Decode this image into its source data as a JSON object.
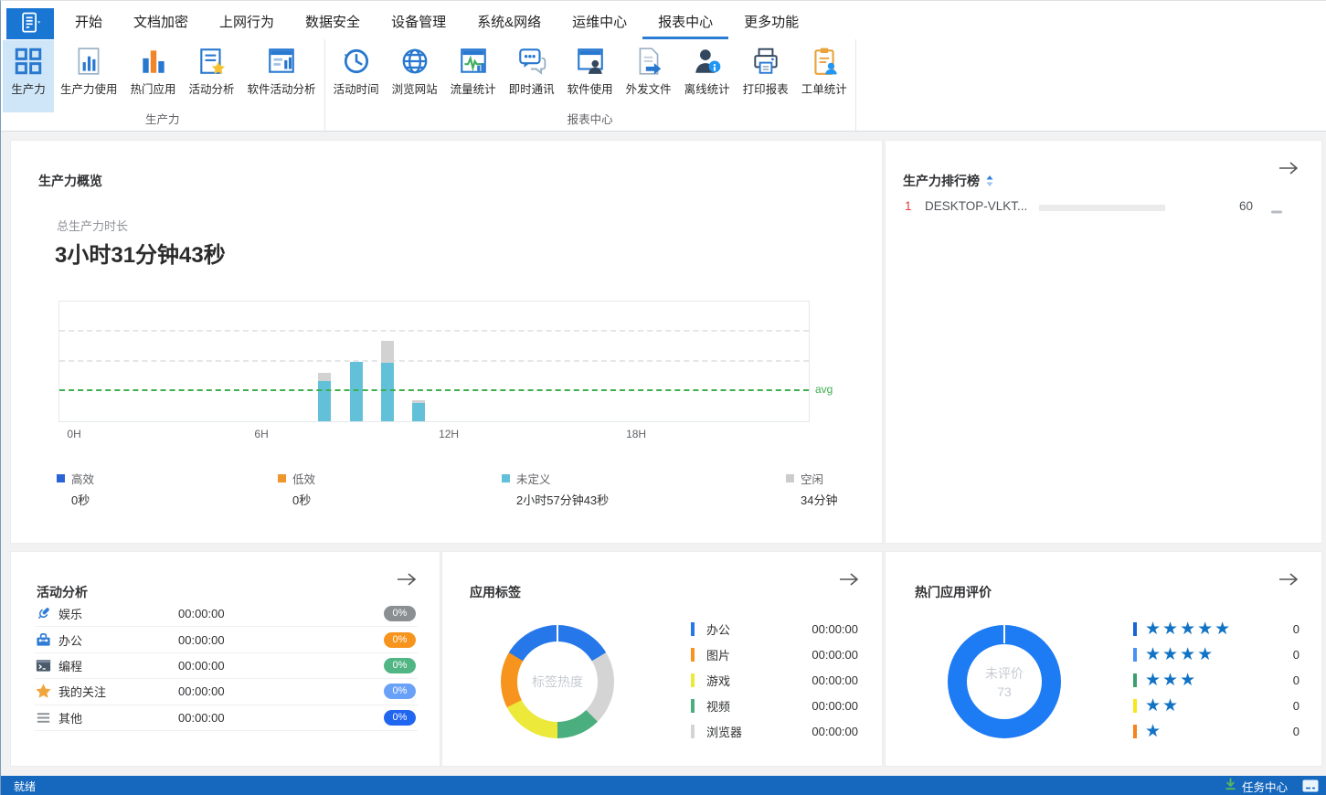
{
  "tabs": {
    "active": "报表中心",
    "items": [
      {
        "label": "开始"
      },
      {
        "label": "文档加密"
      },
      {
        "label": "上网行为"
      },
      {
        "label": "数据安全"
      },
      {
        "label": "设备管理"
      },
      {
        "label": "系统&网络"
      },
      {
        "label": "运维中心"
      },
      {
        "label": "报表中心"
      },
      {
        "label": "更多功能"
      }
    ]
  },
  "ribbon": {
    "groups": [
      {
        "label": "生产力",
        "buttons": [
          {
            "label": "生产力",
            "icon": "grid",
            "selected": true
          },
          {
            "label": "生产力使用",
            "icon": "doc-bars"
          },
          {
            "label": "热门应用",
            "icon": "bars-colored"
          },
          {
            "label": "活动分析",
            "icon": "doc-star"
          },
          {
            "label": "软件活动分析",
            "icon": "window-bars"
          }
        ]
      },
      {
        "label": "报表中心",
        "buttons": [
          {
            "label": "活动时间",
            "icon": "clock"
          },
          {
            "label": "浏览网站",
            "icon": "globe"
          },
          {
            "label": "流量统计",
            "icon": "window-pulse"
          },
          {
            "label": "即时通讯",
            "icon": "chat"
          },
          {
            "label": "软件使用",
            "icon": "window-person"
          },
          {
            "label": "外发文件",
            "icon": "doc-arrow"
          },
          {
            "label": "离线统计",
            "icon": "person-info"
          },
          {
            "label": "打印报表",
            "icon": "printer"
          },
          {
            "label": "工单统计",
            "icon": "clipboard-person"
          }
        ]
      }
    ]
  },
  "overview": {
    "title": "生产力概览",
    "total_label": "总生产力时长",
    "total_value": "3小时31分钟43秒",
    "chart_data": {
      "type": "bar",
      "stacked": true,
      "title": "总生产力时长",
      "x_ticks": [
        "0H",
        "6H",
        "12H",
        "18H"
      ],
      "x_hours": 24,
      "unit": "minutes",
      "ylim": [
        0,
        120
      ],
      "grid_step": 30,
      "series": [
        {
          "name": "未定义",
          "color": "#62c1d8",
          "points": [
            {
              "hour": 8,
              "value": 40
            },
            {
              "hour": 9,
              "value": 60
            },
            {
              "hour": 10,
              "value": 59
            },
            {
              "hour": 11,
              "value": 18
            }
          ]
        },
        {
          "name": "空闲",
          "color": "#d2d2d2",
          "points": [
            {
              "hour": 8,
              "value": 9
            },
            {
              "hour": 9,
              "value": 0
            },
            {
              "hour": 10,
              "value": 22
            },
            {
              "hour": 11,
              "value": 3
            }
          ]
        }
      ],
      "avg_line": {
        "label": "avg",
        "value": 30,
        "color": "#3faf50"
      }
    },
    "legend": [
      {
        "label": "高效",
        "value": "0秒",
        "color": "#2a62d9"
      },
      {
        "label": "低效",
        "value": "0秒",
        "color": "#f0952c"
      },
      {
        "label": "未定义",
        "value": "2小时57分钟43秒",
        "color": "#62c1d8"
      },
      {
        "label": "空闲",
        "value": "34分钟",
        "color": "#cccccc"
      }
    ]
  },
  "leaderboard": {
    "title": "生产力排行榜",
    "rows": [
      {
        "rank": "1",
        "name": "DESKTOP-VLKT...",
        "score": "60",
        "bar_fill_pct": 80
      }
    ]
  },
  "activity": {
    "title": "活动分析",
    "rows": [
      {
        "icon": "mic",
        "label": "娱乐",
        "time": "00:00:00",
        "percent": "0%",
        "badge_color": "#8a8f94"
      },
      {
        "icon": "toolbox",
        "label": "办公",
        "time": "00:00:00",
        "percent": "0%",
        "badge_color": "#f7941d"
      },
      {
        "icon": "terminal",
        "label": "编程",
        "time": "00:00:00",
        "percent": "0%",
        "badge_color": "#52b584"
      },
      {
        "icon": "star",
        "label": "我的关注",
        "time": "00:00:00",
        "percent": "0%",
        "badge_color": "#6aa1f8"
      },
      {
        "icon": "menu",
        "label": "其他",
        "time": "00:00:00",
        "percent": "0%",
        "badge_color": "#2166f0"
      }
    ]
  },
  "app_tags": {
    "title": "应用标签",
    "center_label": "标签热度",
    "chart_data": {
      "type": "pie",
      "center_label": "标签热度",
      "arcs": [
        {
          "color": "#2577ea",
          "start": 0,
          "end": 59
        },
        {
          "color": "#d4d4d4",
          "start": 59,
          "end": 135
        },
        {
          "color": "#4bae7e",
          "start": 135,
          "end": 180
        },
        {
          "color": "#ece93b",
          "start": 180,
          "end": 243
        },
        {
          "color": "#f7941e",
          "start": 243,
          "end": 301
        },
        {
          "color": "#2577ea",
          "start": 301,
          "end": 360
        }
      ]
    },
    "legend": [
      {
        "label": "办公",
        "time": "00:00:00",
        "color": "#2577ea"
      },
      {
        "label": "图片",
        "time": "00:00:00",
        "color": "#f7941e"
      },
      {
        "label": "游戏",
        "time": "00:00:00",
        "color": "#ece93b"
      },
      {
        "label": "视频",
        "time": "00:00:00",
        "color": "#4bae7e"
      },
      {
        "label": "浏览器",
        "time": "00:00:00",
        "color": "#d4d4d4"
      }
    ]
  },
  "app_ratings": {
    "title": "热门应用评价",
    "center_label": "未评价",
    "center_value": "73",
    "chart_data": {
      "type": "pie",
      "center_label": "未评价",
      "center_value": 73,
      "arcs": [
        {
          "name": "未评价",
          "value": 73,
          "color": "#1d7bf4",
          "start": 0,
          "end": 360
        }
      ]
    },
    "rows": [
      {
        "stars": 5,
        "count": "0",
        "tick_color": "#1565d8"
      },
      {
        "stars": 4,
        "count": "0",
        "tick_color": "#4a90f5"
      },
      {
        "stars": 3,
        "count": "0",
        "tick_color": "#3f9e70"
      },
      {
        "stars": 2,
        "count": "0",
        "tick_color": "#f7e71c"
      },
      {
        "stars": 1,
        "count": "0",
        "tick_color": "#f7821e"
      }
    ]
  },
  "statusbar": {
    "left": "就绪",
    "task_center": "任务中心"
  }
}
